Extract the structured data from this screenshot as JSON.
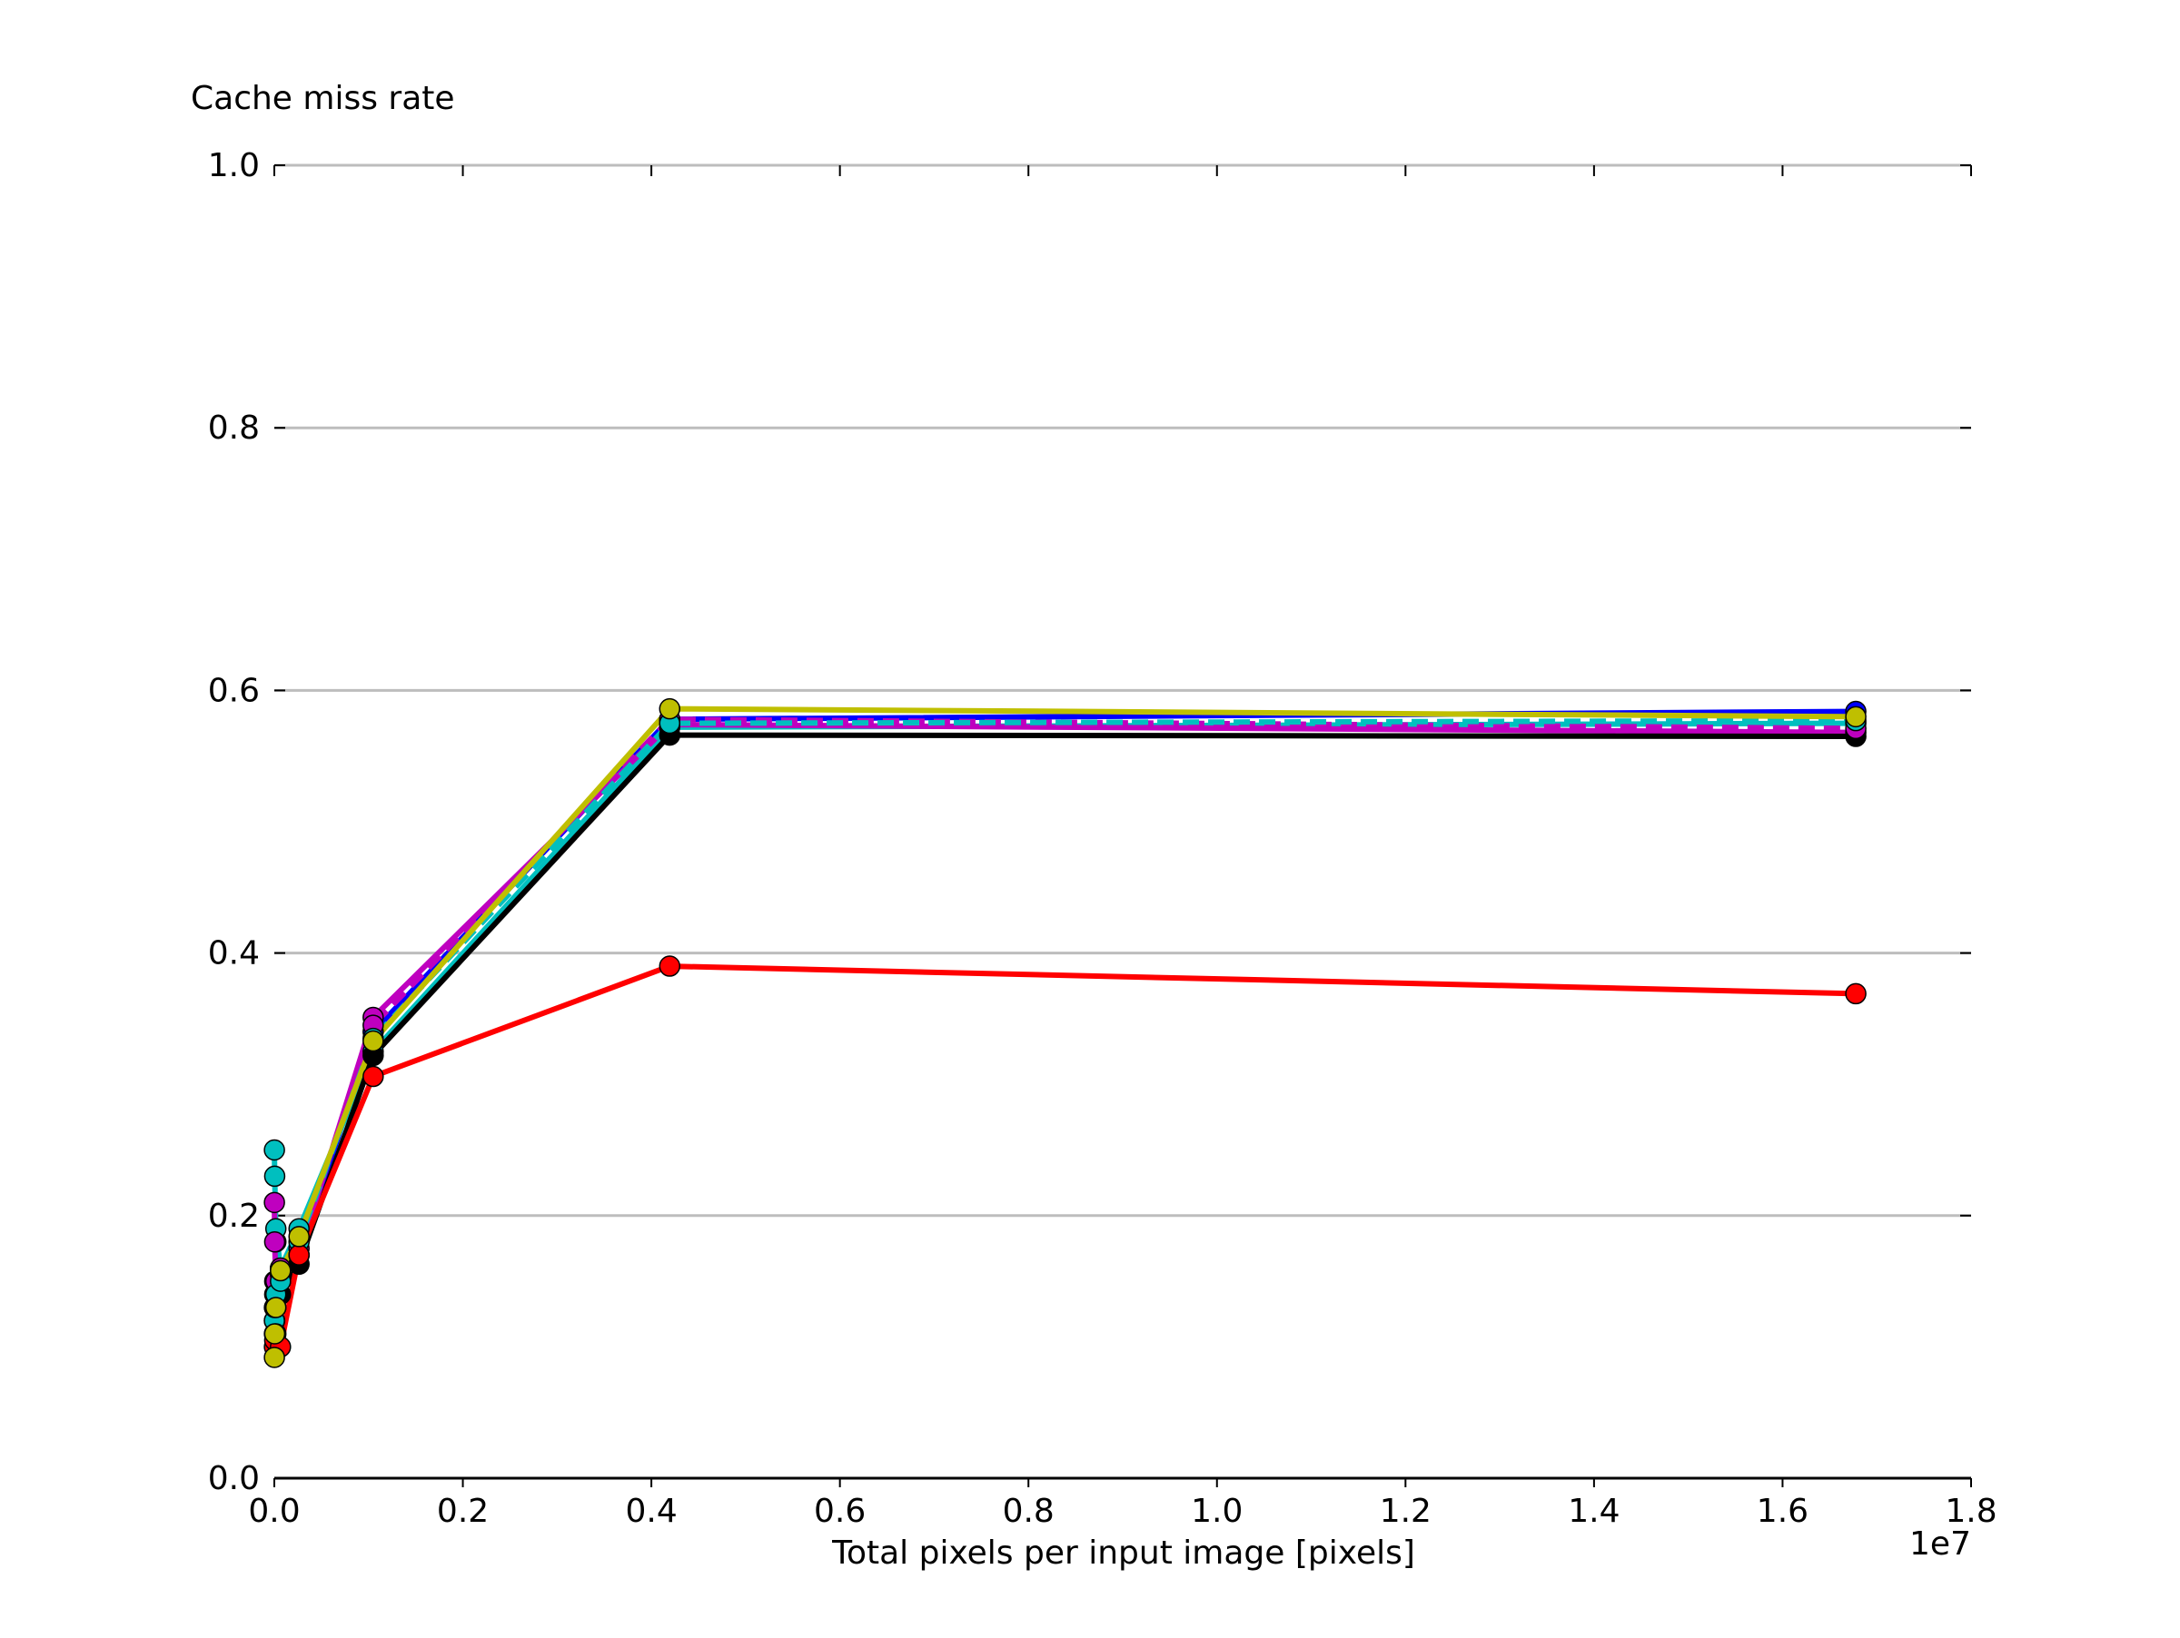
{
  "chart_data": {
    "type": "line",
    "title": "",
    "ylabel": "Cache miss rate",
    "xlabel": "Total pixels per input image [pixels]",
    "x_offset_label": "1e7",
    "xlim": [
      0,
      18000000
    ],
    "ylim": [
      0,
      1.0
    ],
    "x_ticks": [
      0,
      2000000,
      4000000,
      6000000,
      8000000,
      10000000,
      12000000,
      14000000,
      16000000,
      18000000
    ],
    "x_tick_labels": [
      "0.0",
      "0.2",
      "0.4",
      "0.6",
      "0.8",
      "1.0",
      "1.2",
      "1.4",
      "1.6",
      "1.8"
    ],
    "y_ticks": [
      0,
      0.2,
      0.4,
      0.6,
      0.8,
      1.0
    ],
    "y_tick_labels": [
      "0.0",
      "0.2",
      "0.4",
      "0.6",
      "0.8",
      "1.0"
    ],
    "grid": "horizontal",
    "legend": "none",
    "series": [
      {
        "color": "#0000ff",
        "dash": "solid",
        "x": [
          1024,
          4096,
          16384,
          65536,
          262144,
          1048576,
          4194304,
          16777216
        ],
        "y": [
          0.12,
          0.15,
          0.18,
          0.15,
          0.17,
          0.34,
          0.578,
          0.584
        ]
      },
      {
        "color": "#00bfbf",
        "dash": "solid",
        "x": [
          1024,
          4096,
          16384,
          65536,
          262144,
          1048576,
          4194304,
          16777216
        ],
        "y": [
          0.25,
          0.23,
          0.19,
          0.16,
          0.19,
          0.325,
          0.572,
          0.575
        ]
      },
      {
        "color": "#bf00bf",
        "dash": "solid",
        "x": [
          1024,
          4096,
          16384,
          65536,
          262144,
          1048576,
          4194304,
          16777216
        ],
        "y": [
          0.21,
          0.18,
          0.15,
          0.16,
          0.17,
          0.351,
          0.574,
          0.568
        ]
      },
      {
        "color": "#000000",
        "dash": "solid",
        "x": [
          1024,
          4096,
          16384,
          65536,
          262144,
          1048576,
          4194304,
          16777216
        ],
        "y": [
          0.11,
          0.12,
          0.13,
          0.14,
          0.163,
          0.322,
          0.566,
          0.565
        ]
      },
      {
        "color": "#bf00bf",
        "dash": "dashed",
        "x": [
          1024,
          4096,
          16384,
          65536,
          262144,
          1048576,
          4194304,
          16777216
        ],
        "y": [
          0.13,
          0.14,
          0.15,
          0.155,
          0.175,
          0.345,
          0.578,
          0.571
        ]
      },
      {
        "color": "#00bfbf",
        "dash": "dashed",
        "x": [
          1024,
          4096,
          16384,
          65536,
          262144,
          1048576,
          4194304,
          16777216
        ],
        "y": [
          0.12,
          0.13,
          0.14,
          0.15,
          0.18,
          0.335,
          0.575,
          0.577
        ]
      },
      {
        "color": "#ff0000",
        "dash": "solid",
        "x": [
          1024,
          4096,
          16384,
          65536,
          262144,
          1048576,
          4194304,
          16777216
        ],
        "y": [
          0.1,
          0.105,
          0.11,
          0.1,
          0.17,
          0.306,
          0.39,
          0.369
        ]
      },
      {
        "color": "#bfbf00",
        "dash": "solid",
        "x": [
          1024,
          4096,
          16384,
          65536,
          262144,
          1048576,
          4194304,
          16777216
        ],
        "y": [
          0.092,
          0.11,
          0.13,
          0.158,
          0.184,
          0.333,
          0.586,
          0.58
        ]
      }
    ]
  }
}
